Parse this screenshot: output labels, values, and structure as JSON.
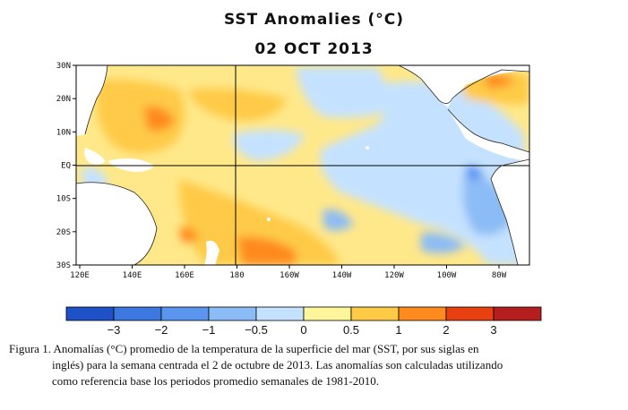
{
  "title": "SST Anomalies (°C)",
  "date": "02 OCT 2013",
  "map": {
    "lat_labels": [
      "30N",
      "20N",
      "10N",
      "EQ",
      "10S",
      "20S",
      "30S"
    ],
    "lon_labels": [
      "120E",
      "140E",
      "160E",
      "180",
      "160W",
      "140W",
      "120W",
      "100W",
      "80W"
    ],
    "land_color": "#ffffff",
    "ocean_background_color": "#ffe88a"
  },
  "colorbar": {
    "tick_labels": [
      "−3",
      "−2",
      "−1",
      "−0.5",
      "0",
      "0.5",
      "1",
      "2",
      "3"
    ],
    "colors": [
      "#1e50c8",
      "#3c78e0",
      "#5a96f0",
      "#8cbcf5",
      "#c4e2ff",
      "#fff59a",
      "#ffca46",
      "#ff8a1e",
      "#e84010",
      "#b41e1e"
    ]
  },
  "caption": {
    "line1": "Figura 1. Anomalías (°C) promedio de la temperatura de la superficie del mar (SST, por sus siglas en",
    "line2": "inglés) para la semana centrada el 2 de octubre de 2013.   Las anomalías son calculadas utilizando",
    "line3": "como referencia base los periodos promedio semanales de 1981-2010."
  }
}
